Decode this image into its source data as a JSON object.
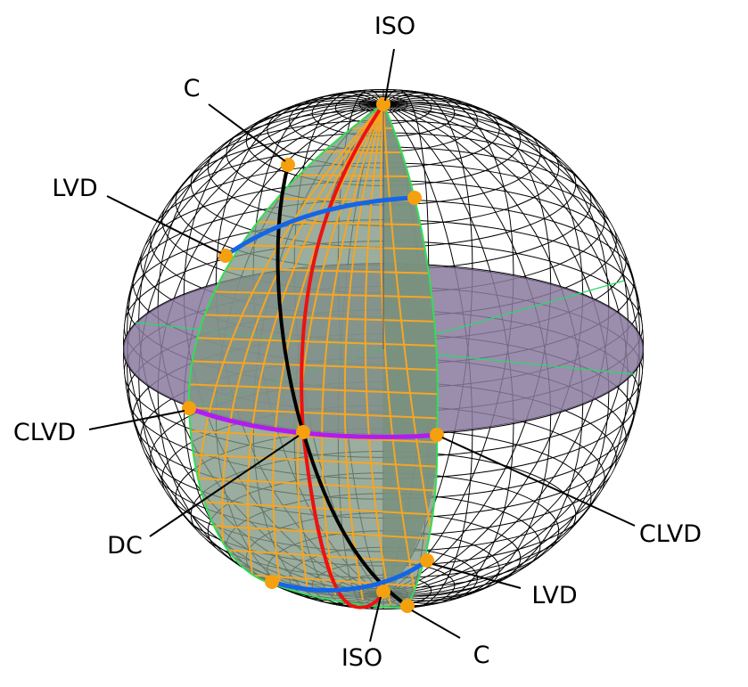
{
  "labels": {
    "iso_top": "ISO",
    "c_top": "C",
    "lvd_top": "LVD",
    "clvd_left": "CLVD",
    "dc": "DC",
    "clvd_right": "CLVD",
    "lvd_bottom": "LVD",
    "iso_bottom": "ISO",
    "c_bottom": "C"
  },
  "colors": {
    "iso_curve": "#ee1111",
    "c_curve": "#000000",
    "lvd_curve": "#1565e6",
    "clvd_curve": "#b21bf2",
    "equatorial_plane": "#8a7a9e",
    "lune_fill": "#7e9683",
    "lune_edge": "#33dd55",
    "lune_grid": "#f5a623",
    "points": "#f5a00f"
  }
}
